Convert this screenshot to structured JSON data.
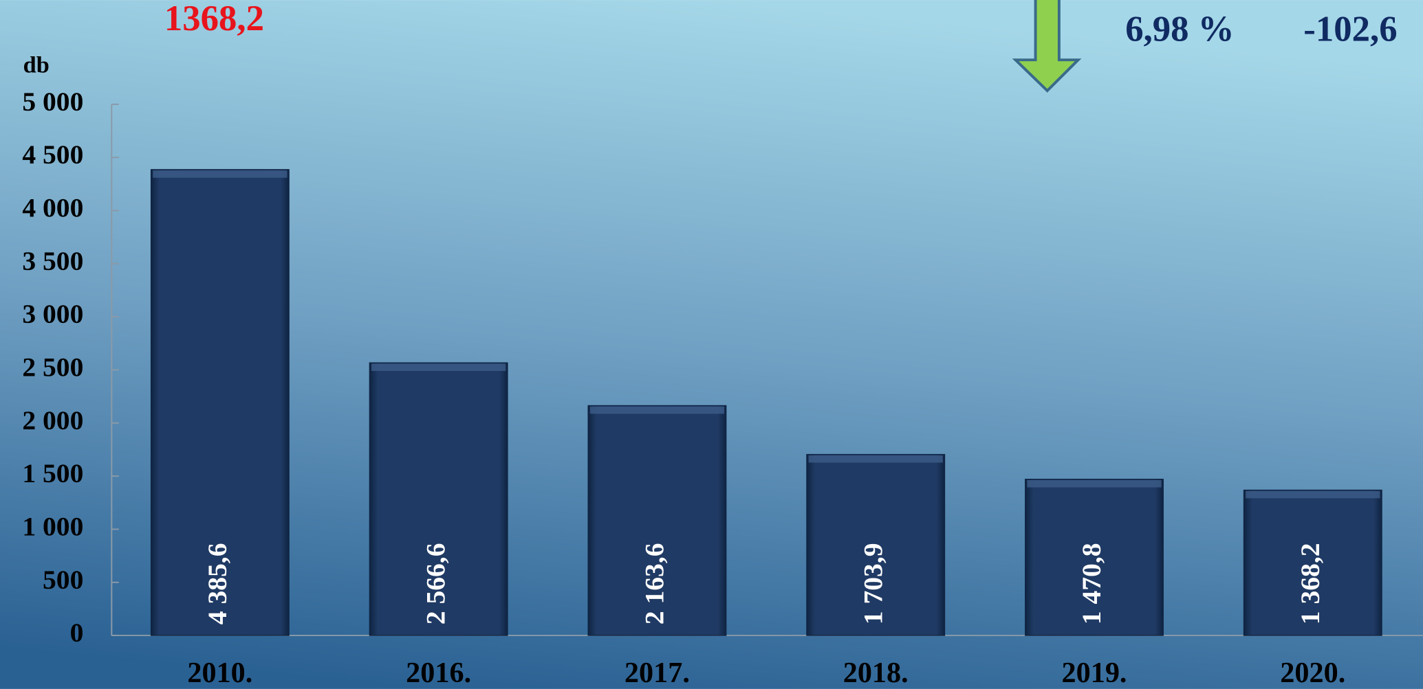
{
  "chart_data": {
    "type": "bar",
    "y_label": "db",
    "annotations": [
      "1368,2",
      "6,98 %",
      "-102,6"
    ],
    "categories": [
      "2010.",
      "2016.",
      "2017.",
      "2018.",
      "2019.",
      "2020."
    ],
    "values": [
      4385.6,
      2566.6,
      2163.6,
      1703.9,
      1470.8,
      1368.2
    ],
    "value_labels": [
      "4 385,6",
      "2 566,6",
      "2 163,6",
      "1 703,9",
      "1 470,8",
      "1 368,2"
    ],
    "color": "#1f3a64",
    "ylim": [
      0,
      5000
    ],
    "yticks": [
      0,
      500,
      {
        "value": 1000,
        "label": "1 000"
      },
      {
        "value": 1500,
        "label": "1 500"
      },
      {
        "value": 2000,
        "label": "2 000"
      },
      {
        "value": 2500,
        "label": "2 500"
      },
      {
        "value": 3000,
        "label": "3 000"
      },
      {
        "value": 3500,
        "label": "3 500"
      },
      {
        "value": 4000,
        "label": "4 000"
      },
      {
        "value": 4500,
        "label": "4 500"
      },
      {
        "value": 5000,
        "label": "5 000"
      }
    ]
  }
}
